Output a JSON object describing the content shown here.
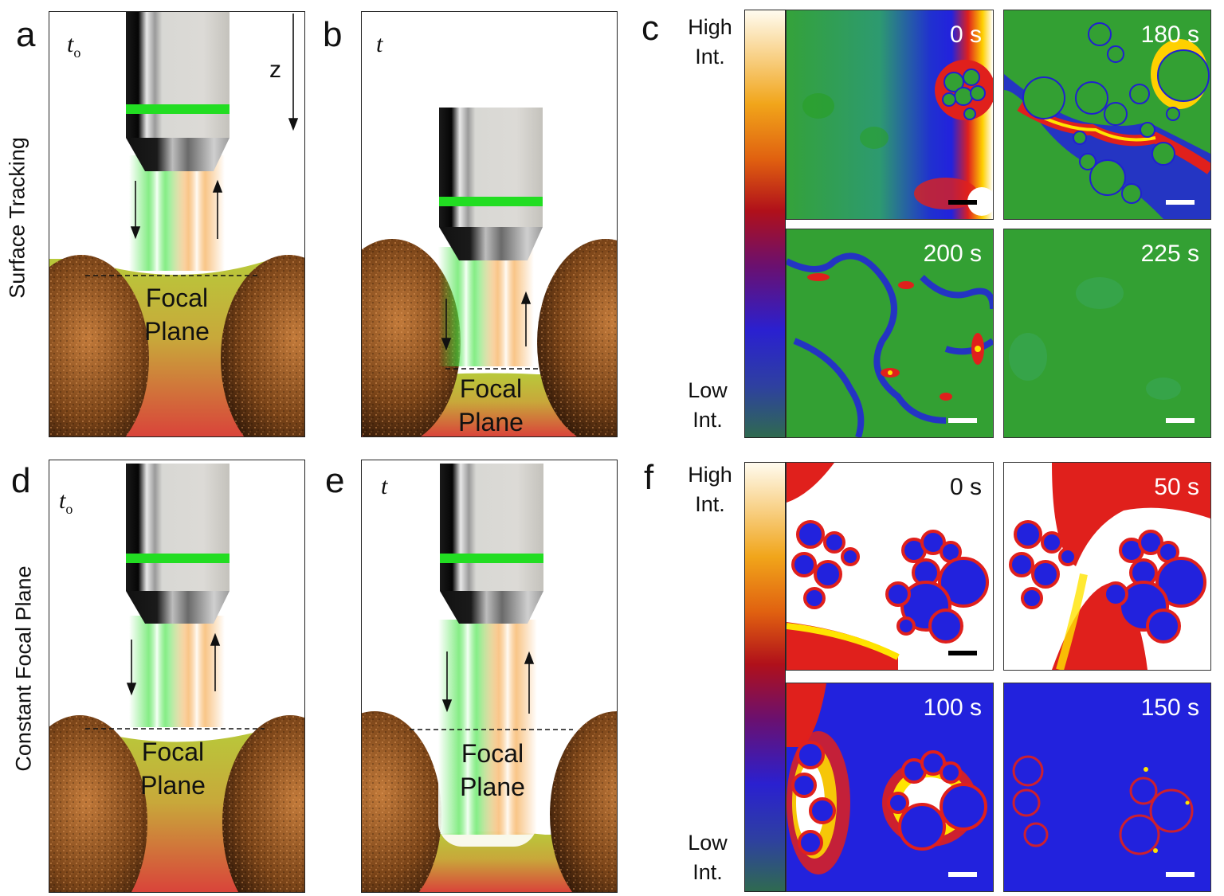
{
  "panels": {
    "a": {
      "letter": "a",
      "time_label": "t",
      "time_sub": "o",
      "focal": [
        "Focal",
        "Plane"
      ],
      "axis_label": "z"
    },
    "b": {
      "letter": "b",
      "time_label": "t",
      "focal": [
        "Focal",
        "Plane"
      ]
    },
    "c": {
      "letter": "c",
      "colorbar_high": [
        "High",
        "Int."
      ],
      "colorbar_low": [
        "Low",
        "Int."
      ],
      "images": [
        {
          "time": "0 s",
          "scale_bar_color": "#000000"
        },
        {
          "time": "180 s",
          "scale_bar_color": "#ffffff"
        },
        {
          "time": "200 s",
          "scale_bar_color": "#ffffff"
        },
        {
          "time": "225 s",
          "scale_bar_color": "#ffffff"
        }
      ]
    },
    "d": {
      "letter": "d",
      "time_label": "t",
      "time_sub": "o",
      "focal": [
        "Focal",
        "Plane"
      ]
    },
    "e": {
      "letter": "e",
      "time_label": "t",
      "focal": [
        "Focal",
        "Plane"
      ]
    },
    "f": {
      "letter": "f",
      "colorbar_high": [
        "High",
        "Int."
      ],
      "colorbar_low": [
        "Low",
        "Int."
      ],
      "images": [
        {
          "time": "0 s",
          "scale_bar_color": "#000000"
        },
        {
          "time": "50 s",
          "scale_bar_color": "#ffffff"
        },
        {
          "time": "100 s",
          "scale_bar_color": "#ffffff"
        },
        {
          "time": "150 s",
          "scale_bar_color": "#ffffff"
        }
      ]
    }
  },
  "row_labels": {
    "top": "Surface Tracking",
    "bottom": "Constant Focal Plane"
  },
  "colors": {
    "excitation_beam": "#3fe23f",
    "emission_beam": "#f5a442",
    "objective_band": "#22dd22",
    "particle": "#7a4418",
    "medium_top": "#b8c93a",
    "medium_bottom": "#d9443a",
    "img_green": "#33a033",
    "img_blue": "#2020d0",
    "img_red": "#e0201c",
    "img_yellow": "#ffe400"
  },
  "icons": [
    "objective-icon",
    "particle-icon",
    "arrow-down-icon",
    "arrow-up-icon"
  ]
}
